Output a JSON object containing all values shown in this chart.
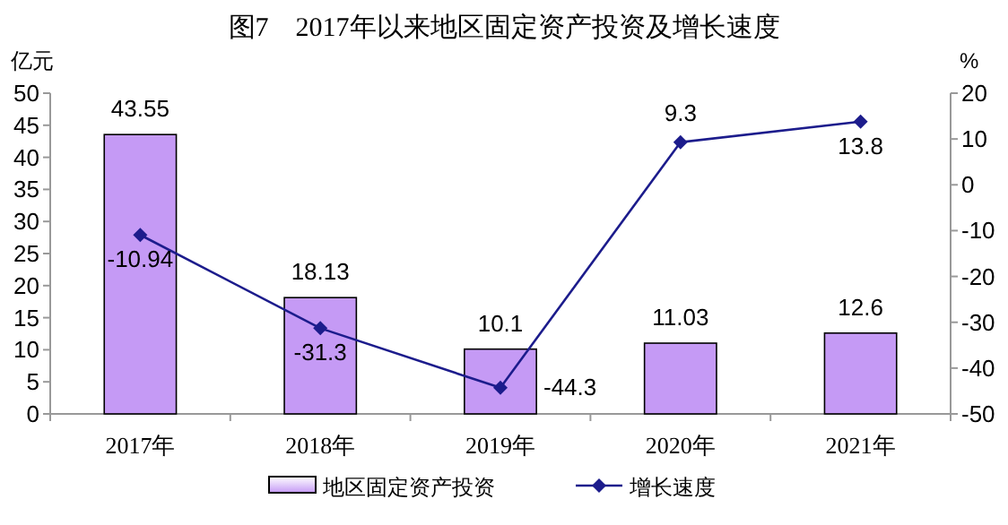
{
  "chart_data": {
    "type": "bar",
    "title": "图7　2017年以来地区固定资产投资及增长速度",
    "categories": [
      "2017年",
      "2018年",
      "2019年",
      "2020年",
      "2021年"
    ],
    "series": [
      {
        "name": "地区固定资产投资",
        "color": "#c59af5",
        "values": [
          43.55,
          18.13,
          10.1,
          11.03,
          12.6
        ]
      },
      {
        "name": "增长速度",
        "type": "line",
        "axis": "y2",
        "color": "#1c1c8c",
        "values": [
          -10.94,
          -31.3,
          -44.3,
          9.3,
          13.8
        ]
      }
    ],
    "ylabel": "亿元",
    "y2label": "%",
    "ylim": [
      0,
      50
    ],
    "yticks": [
      0,
      5,
      10,
      15,
      20,
      25,
      30,
      35,
      40,
      45,
      50
    ],
    "y2lim": [
      -50,
      20
    ],
    "y2ticks": [
      -50,
      -40,
      -30,
      -20,
      -10,
      0,
      10,
      20
    ],
    "data_labels": true,
    "marker": "diamond",
    "line_style": "solid",
    "grid": false,
    "legend": "bottom"
  }
}
